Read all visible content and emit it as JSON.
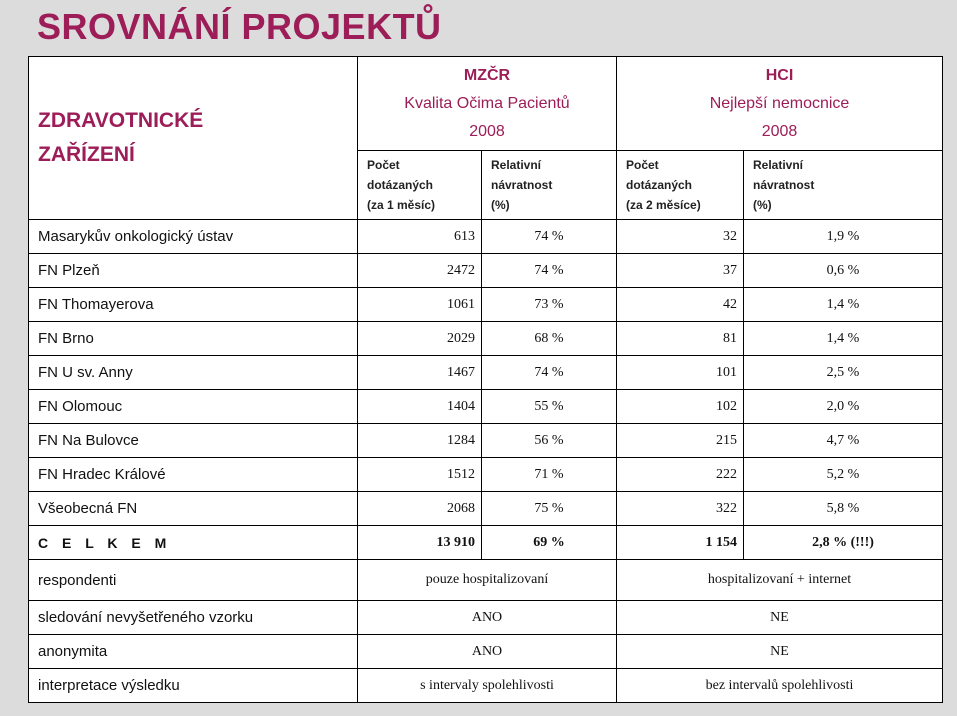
{
  "title": "SROVNÁNÍ PROJEKTŮ",
  "header": {
    "org_line1": "ZDRAVOTNICKÉ",
    "org_line2": "ZAŘÍZENÍ",
    "mzcr": {
      "name": "MZČR",
      "subtitle": "Kvalita Očima Pacientů",
      "year": "2008"
    },
    "hci": {
      "name": "HCI",
      "subtitle": "Nejlepší nemocnice",
      "year": "2008"
    },
    "sub": {
      "mzcr_count": [
        "Počet",
        "dotázaných",
        "(za 1 měsíc)"
      ],
      "mzcr_rate": [
        "Relativní",
        "návratnost",
        "(%)"
      ],
      "hci_count": [
        "Počet",
        "dotázaných",
        "(za 2 měsíce)"
      ],
      "hci_rate": [
        "Relativní",
        "návratnost",
        "(%)"
      ]
    }
  },
  "rows": [
    {
      "name": "Masarykův onkologický ústav",
      "mzcr_count": "613",
      "mzcr_rate": "74 %",
      "hci_count": "32",
      "hci_rate": "1,9 %"
    },
    {
      "name": "FN Plzeň",
      "mzcr_count": "2472",
      "mzcr_rate": "74 %",
      "hci_count": "37",
      "hci_rate": "0,6 %"
    },
    {
      "name": "FN Thomayerova",
      "mzcr_count": "1061",
      "mzcr_rate": "73 %",
      "hci_count": "42",
      "hci_rate": "1,4 %"
    },
    {
      "name": "FN Brno",
      "mzcr_count": "2029",
      "mzcr_rate": "68 %",
      "hci_count": "81",
      "hci_rate": "1,4 %"
    },
    {
      "name": "FN U sv. Anny",
      "mzcr_count": "1467",
      "mzcr_rate": "74 %",
      "hci_count": "101",
      "hci_rate": "2,5 %"
    },
    {
      "name": "FN Olomouc",
      "mzcr_count": "1404",
      "mzcr_rate": "55 %",
      "hci_count": "102",
      "hci_rate": "2,0 %"
    },
    {
      "name": "FN Na Bulovce",
      "mzcr_count": "1284",
      "mzcr_rate": "56 %",
      "hci_count": "215",
      "hci_rate": "4,7 %"
    },
    {
      "name": "FN Hradec Králové",
      "mzcr_count": "1512",
      "mzcr_rate": "71 %",
      "hci_count": "222",
      "hci_rate": "5,2 %"
    },
    {
      "name": "Všeobecná FN",
      "mzcr_count": "2068",
      "mzcr_rate": "75 %",
      "hci_count": "322",
      "hci_rate": "5,8 %"
    }
  ],
  "total": {
    "name": "C E L K E M",
    "mzcr_count": "13 910",
    "mzcr_rate": "69 %",
    "hci_count": "1 154",
    "hci_rate": "2,8 %  (!!!)"
  },
  "footer": [
    {
      "label": "respondenti",
      "mzcr": "pouze hospitalizovaní",
      "hci": "hospitalizovaní + internet"
    },
    {
      "label": "sledování nevyšetřeného vzorku",
      "mzcr": "ANO",
      "hci": "NE"
    },
    {
      "label": "anonymita",
      "mzcr": "ANO",
      "hci": "NE"
    },
    {
      "label": "interpretace výsledku",
      "mzcr": "s intervaly spolehlivosti",
      "hci": "bez intervalů spolehlivosti"
    }
  ]
}
